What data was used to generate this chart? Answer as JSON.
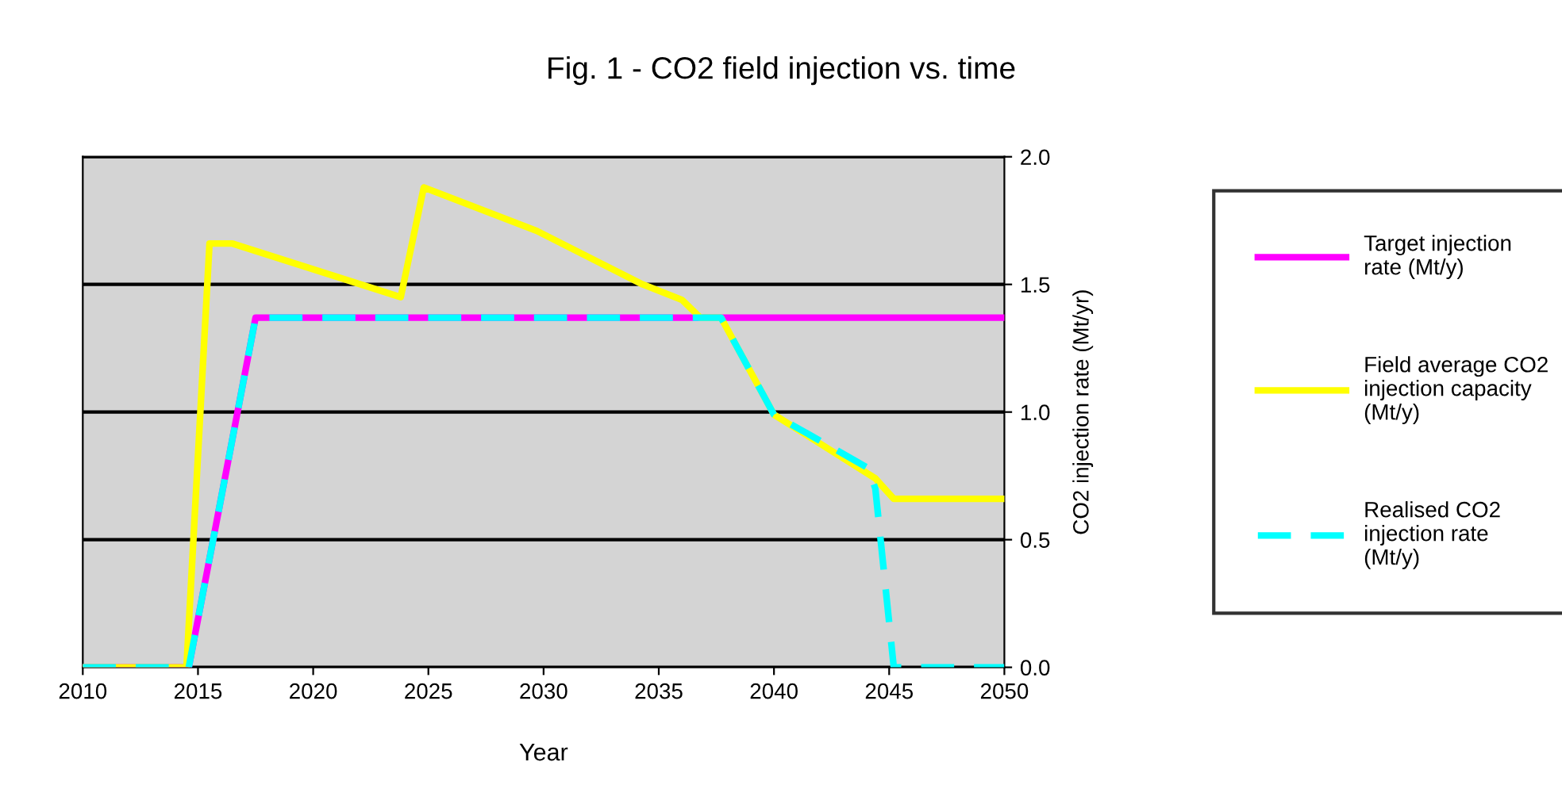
{
  "chart_data": {
    "type": "line",
    "title": "Fig. 1 - CO2 field injection vs. time",
    "xlabel": "Year",
    "ylabel": "CO2 injection rate (Mt/yr)",
    "xlim": [
      2010,
      2050
    ],
    "xticks": [
      2010,
      2015,
      2020,
      2025,
      2030,
      2035,
      2040,
      2045,
      2050
    ],
    "ylim": [
      0,
      2
    ],
    "yticks": [
      {
        "value": 0,
        "label": "0.0"
      },
      {
        "value": 0.5,
        "label": "0.5"
      },
      {
        "value": 1,
        "label": "1.0"
      },
      {
        "value": 1.5,
        "label": "1.5"
      },
      {
        "value": 2,
        "label": "2.0"
      }
    ],
    "grid": "y",
    "legend": "right",
    "marker": "none",
    "series": [
      {
        "name": "Target injection rate (Mt/y)",
        "color": "#ff00ff",
        "line_style": "solid",
        "x": [
          2010,
          2014.6,
          2017.5,
          2050
        ],
        "values": [
          0,
          0,
          1.37,
          1.37
        ]
      },
      {
        "name": "Field average CO2 injection capacity (Mt/y)",
        "color": "#ffff00",
        "line_style": "solid",
        "x": [
          2010,
          2014.5,
          2015.5,
          2016.5,
          2023.8,
          2024.8,
          2029.7,
          2034.3,
          2036.0,
          2036.8,
          2037.7,
          2040,
          2044.4,
          2045.2,
          2050
        ],
        "values": [
          0,
          0,
          1.66,
          1.66,
          1.45,
          1.88,
          1.71,
          1.5,
          1.44,
          1.37,
          1.37,
          0.99,
          0.74,
          0.66,
          0.66
        ]
      },
      {
        "name": "Realised CO2 injection rate (Mt/y)",
        "color": "#00ffff",
        "line_style": "dashed",
        "x": [
          2010,
          2014.6,
          2017.5,
          2037.7,
          2040,
          2044.1,
          2044.4,
          2045.2,
          2050
        ],
        "values": [
          0,
          0,
          1.37,
          1.37,
          0.99,
          0.78,
          0.7,
          0,
          0
        ]
      }
    ]
  }
}
